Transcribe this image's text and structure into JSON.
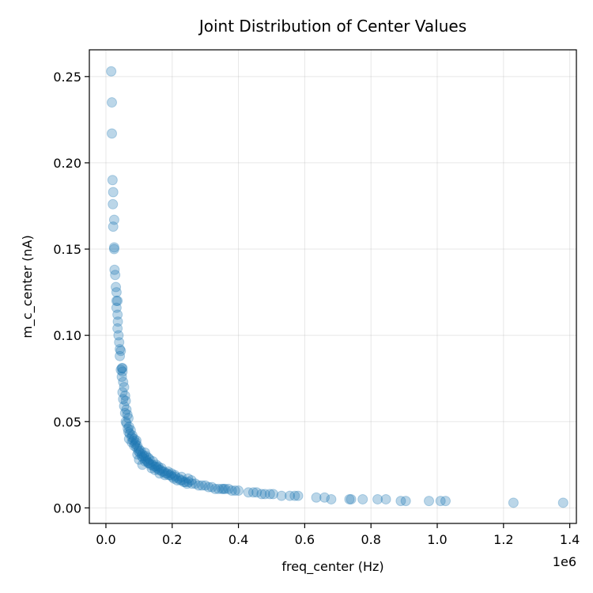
{
  "chart_data": {
    "type": "scatter",
    "title": "Joint Distribution of Center Values",
    "xlabel": "freq_center (Hz)",
    "ylabel": "m_c_center (nA)",
    "x_offset_label": "1e6",
    "xlim": [
      -0.05,
      1.42
    ],
    "ylim": [
      -0.009,
      0.2655
    ],
    "x_ticks": [
      0.0,
      0.2,
      0.4,
      0.6,
      0.8,
      1.0,
      1.2,
      1.4
    ],
    "x_tick_labels": [
      "0.0",
      "0.2",
      "0.4",
      "0.6",
      "0.8",
      "1.0",
      "1.2",
      "1.4"
    ],
    "y_ticks": [
      0.0,
      0.05,
      0.1,
      0.15,
      0.2,
      0.25
    ],
    "y_tick_labels": [
      "0.00",
      "0.05",
      "0.10",
      "0.15",
      "0.20",
      "0.25"
    ],
    "grid": true,
    "color": "#1f77b4",
    "point_alpha": 0.3,
    "points": [
      [
        0.016,
        0.253
      ],
      [
        0.018,
        0.235
      ],
      [
        0.018,
        0.217
      ],
      [
        0.02,
        0.19
      ],
      [
        0.022,
        0.183
      ],
      [
        0.021,
        0.176
      ],
      [
        0.025,
        0.167
      ],
      [
        0.022,
        0.163
      ],
      [
        0.025,
        0.151
      ],
      [
        0.025,
        0.15
      ],
      [
        0.026,
        0.138
      ],
      [
        0.028,
        0.135
      ],
      [
        0.03,
        0.128
      ],
      [
        0.032,
        0.125
      ],
      [
        0.032,
        0.12
      ],
      [
        0.035,
        0.12
      ],
      [
        0.032,
        0.116
      ],
      [
        0.035,
        0.112
      ],
      [
        0.036,
        0.108
      ],
      [
        0.035,
        0.104
      ],
      [
        0.038,
        0.1
      ],
      [
        0.04,
        0.096
      ],
      [
        0.042,
        0.092
      ],
      [
        0.045,
        0.091
      ],
      [
        0.042,
        0.088
      ],
      [
        0.048,
        0.081
      ],
      [
        0.05,
        0.081
      ],
      [
        0.045,
        0.08
      ],
      [
        0.05,
        0.079
      ],
      [
        0.048,
        0.076
      ],
      [
        0.052,
        0.073
      ],
      [
        0.055,
        0.07
      ],
      [
        0.05,
        0.067
      ],
      [
        0.058,
        0.065
      ],
      [
        0.052,
        0.063
      ],
      [
        0.06,
        0.062
      ],
      [
        0.055,
        0.059
      ],
      [
        0.062,
        0.057
      ],
      [
        0.058,
        0.055
      ],
      [
        0.065,
        0.054
      ],
      [
        0.068,
        0.052
      ],
      [
        0.062,
        0.049
      ],
      [
        0.07,
        0.047
      ],
      [
        0.066,
        0.046
      ],
      [
        0.075,
        0.045
      ],
      [
        0.072,
        0.043
      ],
      [
        0.08,
        0.042
      ],
      [
        0.078,
        0.041
      ],
      [
        0.085,
        0.04
      ],
      [
        0.082,
        0.039
      ],
      [
        0.09,
        0.038
      ],
      [
        0.088,
        0.037
      ],
      [
        0.095,
        0.036
      ],
      [
        0.092,
        0.035
      ],
      [
        0.1,
        0.034
      ],
      [
        0.098,
        0.033
      ],
      [
        0.105,
        0.033
      ],
      [
        0.102,
        0.032
      ],
      [
        0.11,
        0.031
      ],
      [
        0.095,
        0.031
      ],
      [
        0.108,
        0.03
      ],
      [
        0.115,
        0.03
      ],
      [
        0.112,
        0.029
      ],
      [
        0.12,
        0.028
      ],
      [
        0.1,
        0.028
      ],
      [
        0.118,
        0.027
      ],
      [
        0.125,
        0.027
      ],
      [
        0.13,
        0.026
      ],
      [
        0.128,
        0.026
      ],
      [
        0.135,
        0.025
      ],
      [
        0.11,
        0.025
      ],
      [
        0.14,
        0.025
      ],
      [
        0.145,
        0.024
      ],
      [
        0.15,
        0.024
      ],
      [
        0.138,
        0.023
      ],
      [
        0.155,
        0.023
      ],
      [
        0.16,
        0.022
      ],
      [
        0.148,
        0.022
      ],
      [
        0.165,
        0.022
      ],
      [
        0.17,
        0.021
      ],
      [
        0.175,
        0.021
      ],
      [
        0.162,
        0.02
      ],
      [
        0.18,
        0.02
      ],
      [
        0.185,
        0.02
      ],
      [
        0.19,
        0.019
      ],
      [
        0.178,
        0.019
      ],
      [
        0.195,
        0.019
      ],
      [
        0.2,
        0.018
      ],
      [
        0.21,
        0.018
      ],
      [
        0.205,
        0.017
      ],
      [
        0.22,
        0.017
      ],
      [
        0.215,
        0.016
      ],
      [
        0.23,
        0.016
      ],
      [
        0.225,
        0.016
      ],
      [
        0.24,
        0.015
      ],
      [
        0.235,
        0.015
      ],
      [
        0.25,
        0.015
      ],
      [
        0.245,
        0.014
      ],
      [
        0.26,
        0.014
      ],
      [
        0.27,
        0.014
      ],
      [
        0.28,
        0.013
      ],
      [
        0.29,
        0.013
      ],
      [
        0.3,
        0.013
      ],
      [
        0.31,
        0.012
      ],
      [
        0.32,
        0.012
      ],
      [
        0.33,
        0.011
      ],
      [
        0.34,
        0.011
      ],
      [
        0.35,
        0.011
      ],
      [
        0.355,
        0.011
      ],
      [
        0.36,
        0.011
      ],
      [
        0.37,
        0.011
      ],
      [
        0.38,
        0.01
      ],
      [
        0.39,
        0.01
      ],
      [
        0.4,
        0.01
      ],
      [
        0.43,
        0.009
      ],
      [
        0.445,
        0.009
      ],
      [
        0.455,
        0.009
      ],
      [
        0.47,
        0.008
      ],
      [
        0.48,
        0.008
      ],
      [
        0.495,
        0.008
      ],
      [
        0.505,
        0.008
      ],
      [
        0.53,
        0.007
      ],
      [
        0.555,
        0.007
      ],
      [
        0.57,
        0.007
      ],
      [
        0.58,
        0.007
      ],
      [
        0.635,
        0.006
      ],
      [
        0.66,
        0.006
      ],
      [
        0.68,
        0.005
      ],
      [
        0.735,
        0.005
      ],
      [
        0.74,
        0.005
      ],
      [
        0.775,
        0.005
      ],
      [
        0.82,
        0.005
      ],
      [
        0.845,
        0.005
      ],
      [
        0.89,
        0.004
      ],
      [
        0.905,
        0.004
      ],
      [
        0.975,
        0.004
      ],
      [
        1.01,
        0.004
      ],
      [
        1.025,
        0.004
      ],
      [
        1.23,
        0.003
      ],
      [
        1.38,
        0.003
      ],
      [
        0.122,
        0.03
      ],
      [
        0.132,
        0.028
      ],
      [
        0.142,
        0.027
      ],
      [
        0.152,
        0.025
      ],
      [
        0.158,
        0.024
      ],
      [
        0.168,
        0.023
      ],
      [
        0.188,
        0.021
      ],
      [
        0.198,
        0.02
      ],
      [
        0.208,
        0.019
      ],
      [
        0.228,
        0.018
      ],
      [
        0.248,
        0.017
      ],
      [
        0.258,
        0.016
      ],
      [
        0.078,
        0.038
      ],
      [
        0.085,
        0.036
      ],
      [
        0.092,
        0.039
      ],
      [
        0.07,
        0.04
      ],
      [
        0.06,
        0.05
      ],
      [
        0.068,
        0.044
      ],
      [
        0.118,
        0.032
      ],
      [
        0.128,
        0.029
      ]
    ]
  }
}
